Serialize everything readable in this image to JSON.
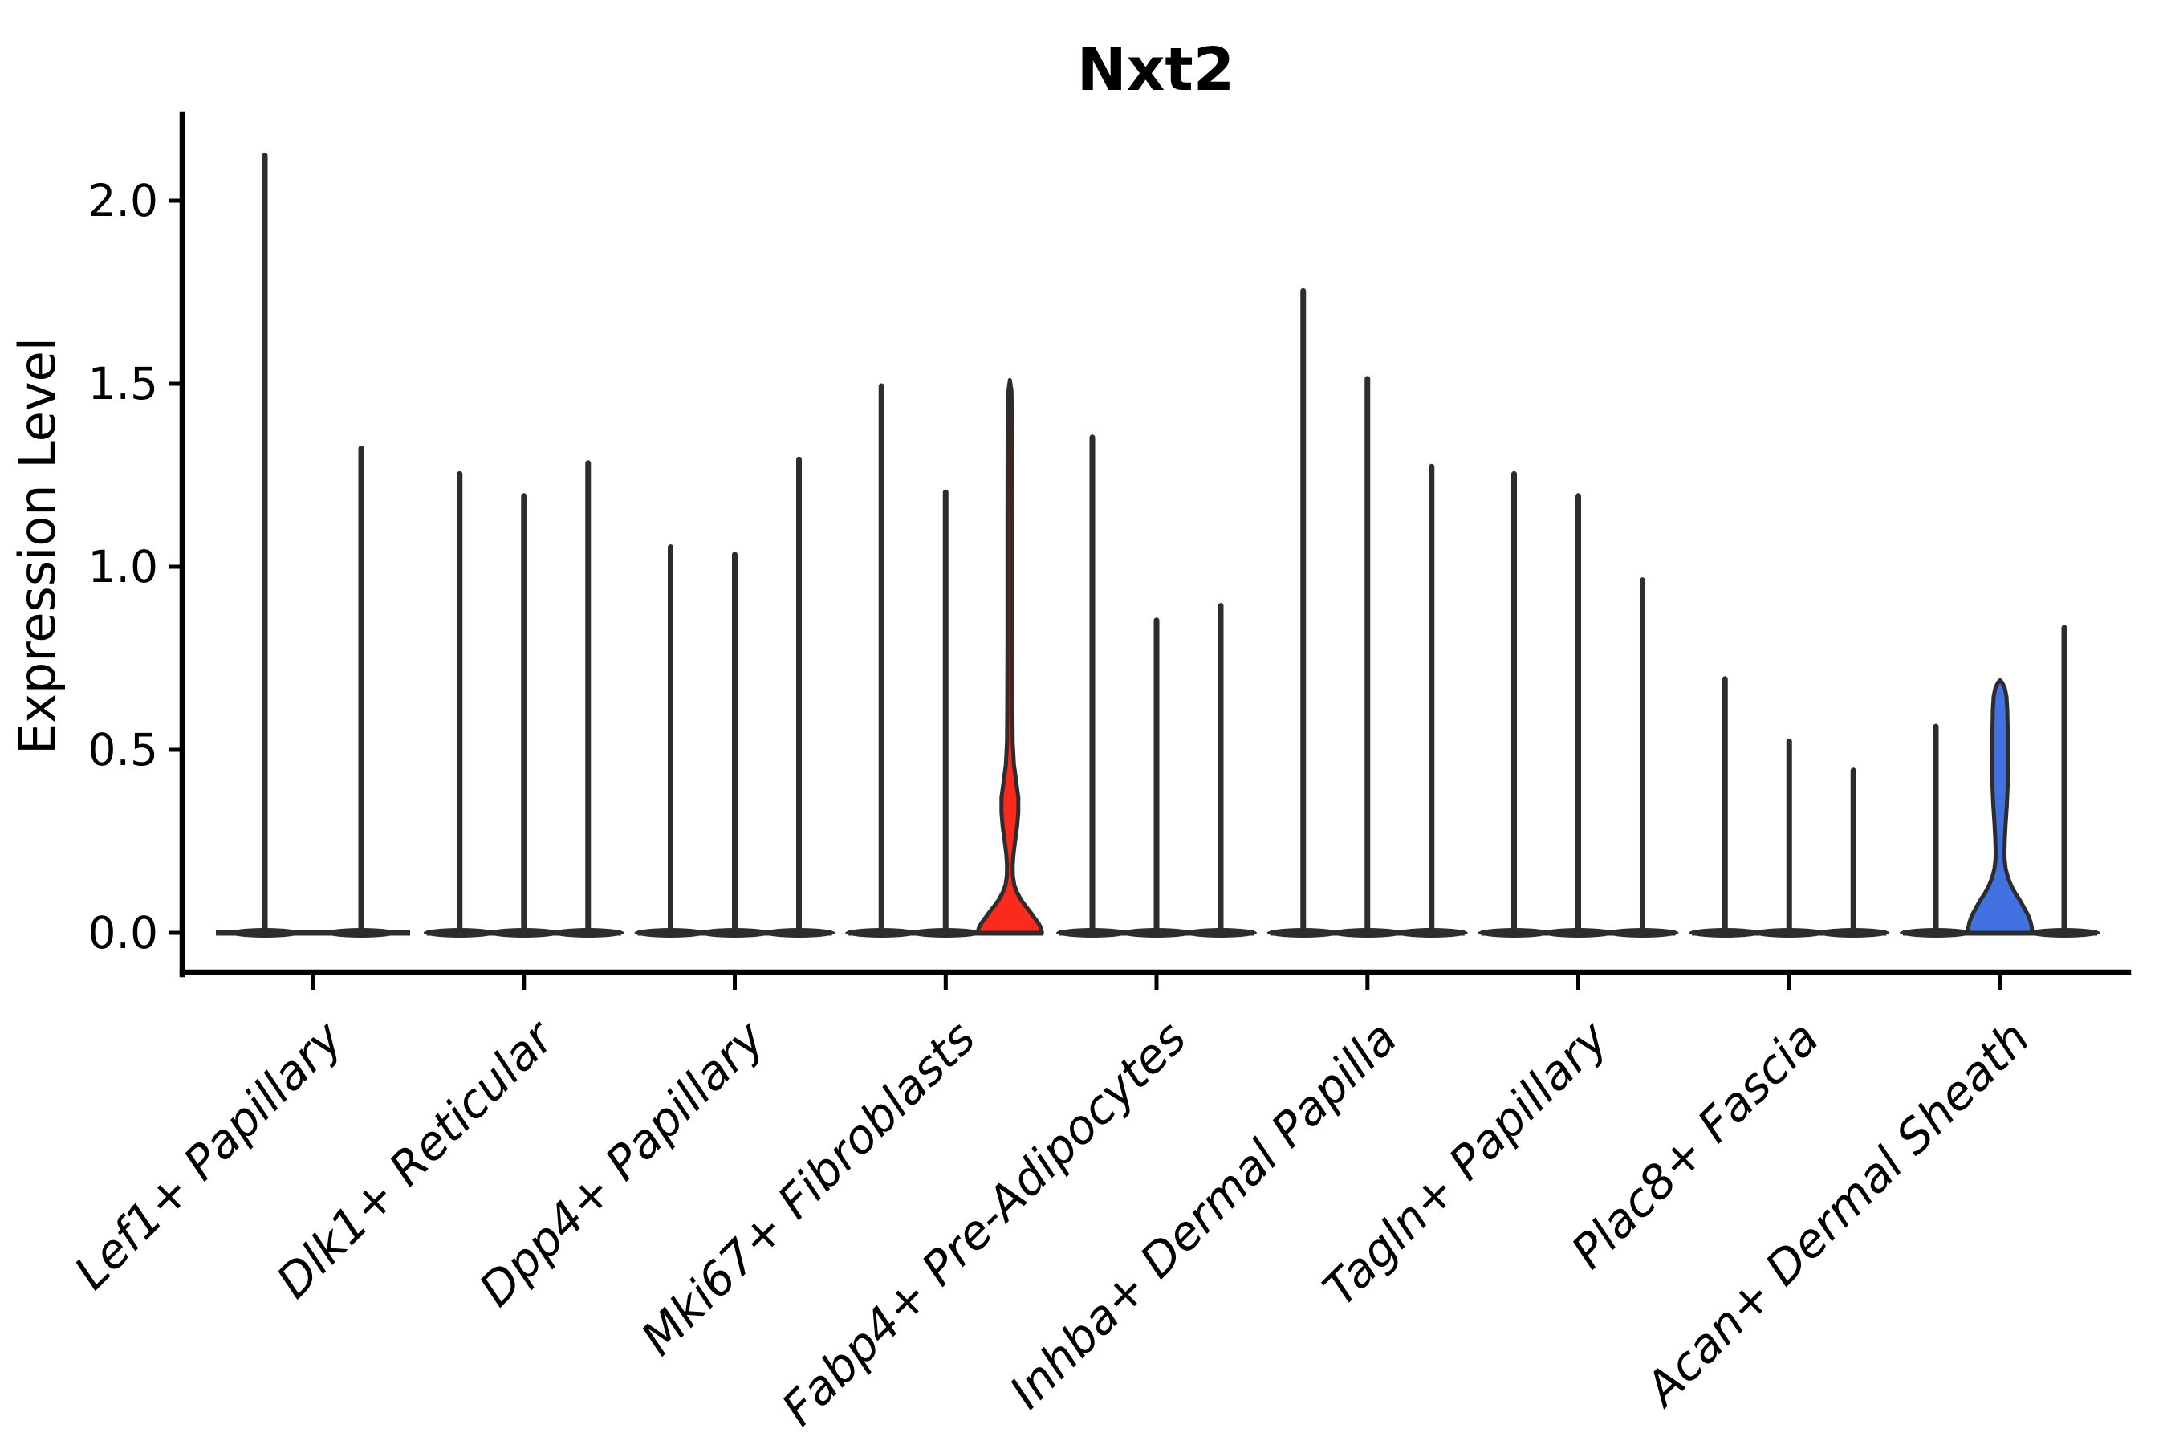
{
  "chart_data": {
    "type": "violin",
    "title": "Nxt2",
    "ylabel": "Expression Level",
    "ylim": [
      -0.11,
      2.24
    ],
    "grid": false,
    "legend": "none",
    "ytick_values": [
      0.0,
      0.5,
      1.0,
      1.5,
      2.0
    ],
    "ytick_labels": [
      "0.0",
      "0.5",
      "1.0",
      "1.5",
      "2.0"
    ],
    "colors": {
      "outline": "#2d2d2d",
      "axis": "#000000",
      "background": "#ffffff",
      "red": "#fa2a1d",
      "blue": "#4272e2"
    },
    "categories": [
      {
        "label": "Lef1+ Papillary",
        "violins": [
          {
            "offset": -60,
            "max": 2.13,
            "style": "spike"
          },
          {
            "offset": 60,
            "max": 1.33,
            "style": "spike"
          }
        ]
      },
      {
        "label": "Dlk1+ Reticular",
        "violins": [
          {
            "offset": -80,
            "max": 1.26,
            "style": "spike"
          },
          {
            "offset": 0,
            "max": 1.2,
            "style": "spike"
          },
          {
            "offset": 80,
            "max": 1.29,
            "style": "spike"
          }
        ]
      },
      {
        "label": "Dpp4+ Papillary",
        "violins": [
          {
            "offset": -80,
            "max": 1.06,
            "style": "spike"
          },
          {
            "offset": 0,
            "max": 1.04,
            "style": "spike"
          },
          {
            "offset": 80,
            "max": 1.3,
            "style": "spike"
          }
        ]
      },
      {
        "label": "Mki67+ Fibroblasts",
        "violins": [
          {
            "offset": -80,
            "max": 1.5,
            "style": "spike"
          },
          {
            "offset": 0,
            "max": 1.21,
            "style": "spike"
          },
          {
            "offset": 80,
            "max": 1.51,
            "style": "filled",
            "color": "red",
            "profile": [
              [
                1.51,
                0
              ],
              [
                1.48,
                2
              ],
              [
                1.38,
                2.8
              ],
              [
                1.1,
                3
              ],
              [
                0.8,
                3
              ],
              [
                0.6,
                3.2
              ],
              [
                0.52,
                3.6
              ],
              [
                0.46,
                5
              ],
              [
                0.41,
                8
              ],
              [
                0.37,
                10.5
              ],
              [
                0.33,
                10.5
              ],
              [
                0.29,
                9
              ],
              [
                0.25,
                6.5
              ],
              [
                0.215,
                4.5
              ],
              [
                0.185,
                3.6
              ],
              [
                0.155,
                3.8
              ],
              [
                0.13,
                5.5
              ],
              [
                0.11,
                9
              ],
              [
                0.09,
                14
              ],
              [
                0.072,
                20
              ],
              [
                0.055,
                26
              ],
              [
                0.04,
                31
              ],
              [
                0.025,
                36
              ],
              [
                0.012,
                39
              ],
              [
                0.0,
                40
              ]
            ]
          }
        ]
      },
      {
        "label": "Fabp4+ Pre-Adipocytes",
        "violins": [
          {
            "offset": -80,
            "max": 1.36,
            "style": "spike"
          },
          {
            "offset": 0,
            "max": 0.86,
            "style": "spike"
          },
          {
            "offset": 80,
            "max": 0.9,
            "style": "spike"
          }
        ]
      },
      {
        "label": "Inhba+ Dermal Papilla",
        "violins": [
          {
            "offset": -80,
            "max": 1.76,
            "style": "spike"
          },
          {
            "offset": 0,
            "max": 1.52,
            "style": "spike"
          },
          {
            "offset": 80,
            "max": 1.28,
            "style": "spike"
          }
        ]
      },
      {
        "label": "Tagln+ Papillary",
        "violins": [
          {
            "offset": -80,
            "max": 1.26,
            "style": "spike"
          },
          {
            "offset": 0,
            "max": 1.2,
            "style": "spike"
          },
          {
            "offset": 80,
            "max": 0.97,
            "style": "spike"
          }
        ]
      },
      {
        "label": "Plac8+ Fascia",
        "violins": [
          {
            "offset": -80,
            "max": 0.7,
            "style": "spike"
          },
          {
            "offset": 0,
            "max": 0.53,
            "style": "spike"
          },
          {
            "offset": 80,
            "max": 0.45,
            "style": "spike"
          }
        ]
      },
      {
        "label": "Acan+ Dermal Sheath",
        "violins": [
          {
            "offset": -80,
            "max": 0.57,
            "style": "spike"
          },
          {
            "offset": 0,
            "max": 0.69,
            "style": "filled",
            "color": "blue",
            "profile": [
              [
                0.69,
                0
              ],
              [
                0.682,
                3
              ],
              [
                0.668,
                6
              ],
              [
                0.645,
                8
              ],
              [
                0.61,
                9
              ],
              [
                0.56,
                9.5
              ],
              [
                0.5,
                9.5
              ],
              [
                0.45,
                10
              ],
              [
                0.4,
                9.5
              ],
              [
                0.35,
                8.5
              ],
              [
                0.3,
                7
              ],
              [
                0.26,
                6
              ],
              [
                0.225,
                5.5
              ],
              [
                0.2,
                5.7
              ],
              [
                0.175,
                7
              ],
              [
                0.15,
                10
              ],
              [
                0.128,
                14
              ],
              [
                0.108,
                19
              ],
              [
                0.088,
                25
              ],
              [
                0.068,
                30
              ],
              [
                0.048,
                35
              ],
              [
                0.03,
                38
              ],
              [
                0.015,
                39.5
              ],
              [
                0.0,
                40
              ]
            ]
          },
          {
            "offset": 80,
            "max": 0.84,
            "style": "spike"
          }
        ]
      }
    ]
  }
}
